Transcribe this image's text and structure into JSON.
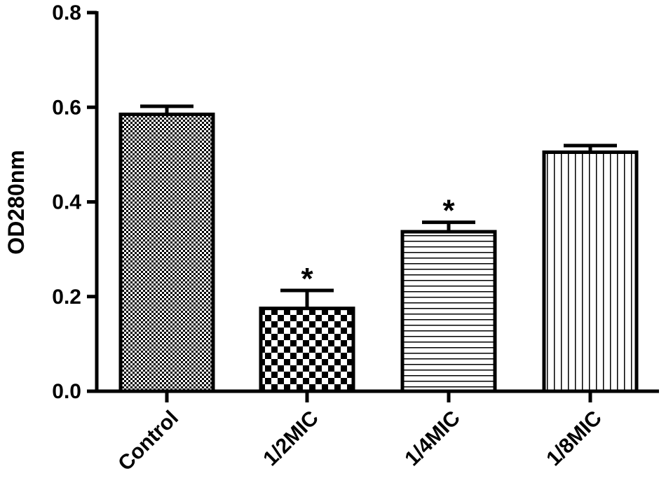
{
  "chart_data": {
    "type": "bar",
    "title": "",
    "xlabel": "",
    "ylabel": "OD280nm",
    "ylim": [
      0,
      0.8
    ],
    "yticks": [
      "0.0",
      "0.2",
      "0.4",
      "0.6",
      "0.8"
    ],
    "grid": false,
    "categories": [
      "Control",
      "1/2MIC",
      "1/4MIC",
      "1/8MIC"
    ],
    "series": [
      {
        "values": [
          0.585,
          0.175,
          0.337,
          0.505
        ],
        "errors": [
          0.017,
          0.038,
          0.02,
          0.014
        ],
        "annotations": [
          "",
          "*",
          "*",
          ""
        ],
        "patterns": [
          "fine-check",
          "checker",
          "horizontal-lines",
          "vertical-lines"
        ]
      }
    ]
  }
}
